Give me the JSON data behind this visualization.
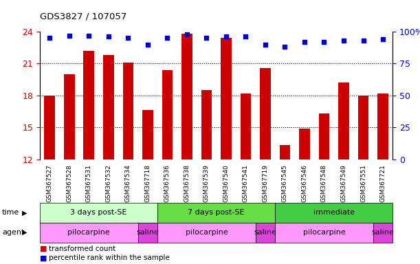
{
  "title": "GDS3827 / 107057",
  "samples": [
    "GSM367527",
    "GSM367528",
    "GSM367531",
    "GSM367532",
    "GSM367534",
    "GSM367718",
    "GSM367536",
    "GSM367538",
    "GSM367539",
    "GSM367540",
    "GSM367541",
    "GSM367719",
    "GSM367545",
    "GSM367546",
    "GSM367548",
    "GSM367549",
    "GSM367551",
    "GSM367721"
  ],
  "bar_values": [
    18.0,
    20.0,
    22.2,
    21.8,
    21.1,
    16.6,
    20.4,
    23.8,
    18.5,
    23.4,
    18.2,
    20.6,
    13.3,
    14.9,
    16.3,
    19.2,
    18.0,
    18.2
  ],
  "dot_values": [
    95,
    97,
    97,
    96,
    95,
    90,
    95,
    98,
    95,
    96,
    96,
    90,
    88,
    92,
    92,
    93,
    93,
    94
  ],
  "ylim_left": [
    12,
    24
  ],
  "ylim_right": [
    0,
    100
  ],
  "yticks_left": [
    12,
    15,
    18,
    21,
    24
  ],
  "yticks_right": [
    0,
    25,
    50,
    75,
    100
  ],
  "ytick_labels_right": [
    "0",
    "25",
    "50",
    "75",
    "100%"
  ],
  "bar_color": "#cc0000",
  "dot_color": "#0000cc",
  "time_groups": [
    {
      "label": "3 days post-SE",
      "start": 0,
      "end": 6,
      "color": "#ccffcc"
    },
    {
      "label": "7 days post-SE",
      "start": 6,
      "end": 12,
      "color": "#66dd44"
    },
    {
      "label": "immediate",
      "start": 12,
      "end": 18,
      "color": "#44cc44"
    }
  ],
  "agent_groups": [
    {
      "label": "pilocarpine",
      "start": 0,
      "end": 5,
      "color": "#ff99ff"
    },
    {
      "label": "saline",
      "start": 5,
      "end": 6,
      "color": "#dd44dd"
    },
    {
      "label": "pilocarpine",
      "start": 6,
      "end": 11,
      "color": "#ff99ff"
    },
    {
      "label": "saline",
      "start": 11,
      "end": 12,
      "color": "#dd44dd"
    },
    {
      "label": "pilocarpine",
      "start": 12,
      "end": 17,
      "color": "#ff99ff"
    },
    {
      "label": "saline",
      "start": 17,
      "end": 18,
      "color": "#dd44dd"
    }
  ]
}
